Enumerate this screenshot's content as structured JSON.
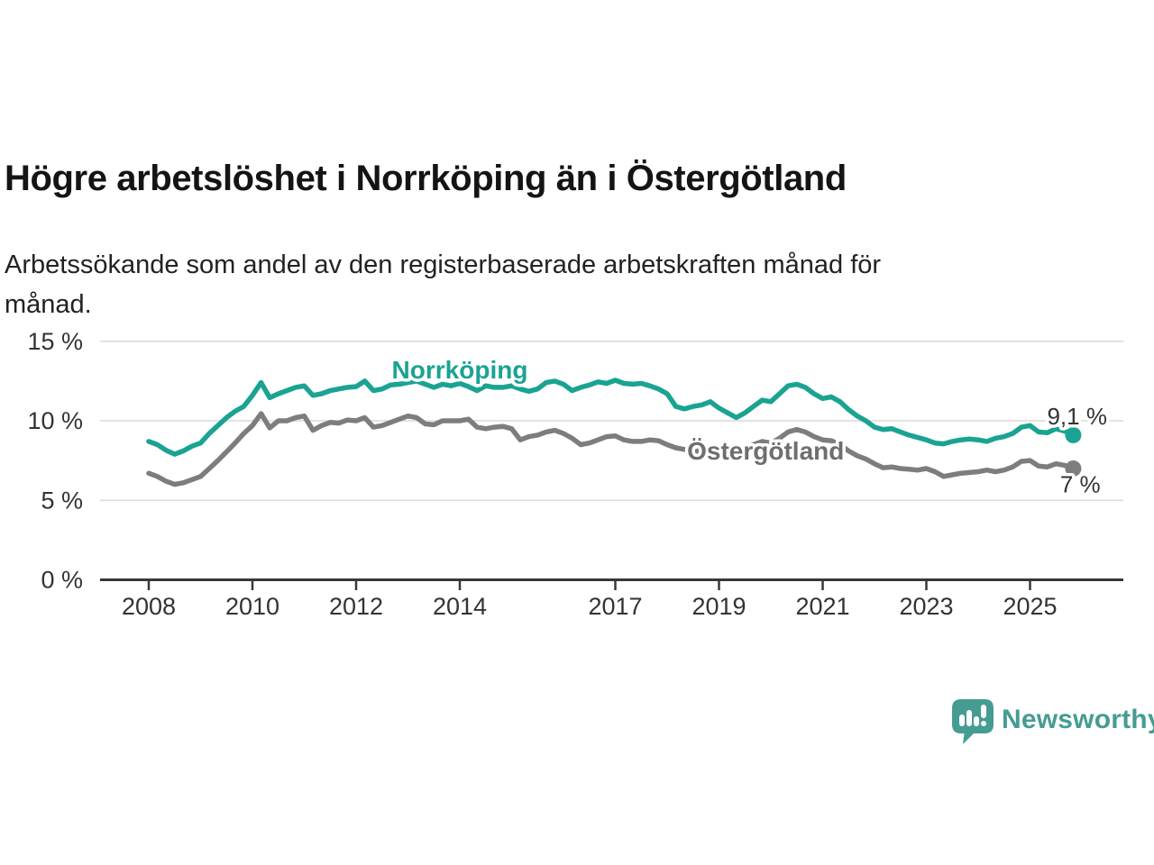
{
  "chart_data": {
    "type": "line",
    "title": "Högre arbetslöshet i Norrköping än i Östergötland",
    "subtitle": "Arbetssökande som andel av den registerbaserade arbetskraften månad för\nmånad.",
    "unit": "%",
    "grid": "horizontal",
    "x_start": 2008,
    "x_end": 2025.83,
    "points_per_year": 6,
    "ylim": [
      0,
      15.8
    ],
    "x_axis_ticks": [
      2008,
      2010,
      2012,
      2014,
      2017,
      2019,
      2021,
      2023,
      2025
    ],
    "y_axis_ticks": [
      {
        "value": 0,
        "label": "0 %"
      },
      {
        "value": 5,
        "label": "5 %"
      },
      {
        "value": 10,
        "label": "10 %"
      },
      {
        "value": 15,
        "label": "15 %"
      }
    ],
    "series": [
      {
        "name": "Norrköping",
        "color": "#1aa392",
        "label_color": "#1aa392",
        "inline_label": {
          "t": 2014.0,
          "v": 12.66
        },
        "end_value_label": {
          "text": "9,1 %",
          "t": 2025.33,
          "v": 9.78
        },
        "latest_value": "9,1 %",
        "values": [
          8.7,
          8.5,
          8.15,
          7.9,
          8.1,
          8.4,
          8.6,
          9.2,
          9.7,
          10.2,
          10.6,
          10.9,
          11.6,
          12.4,
          11.45,
          11.7,
          11.9,
          12.1,
          12.2,
          11.6,
          11.7,
          11.9,
          12.0,
          12.1,
          12.15,
          12.5,
          11.9,
          12.0,
          12.25,
          12.3,
          12.4,
          12.5,
          12.3,
          12.1,
          12.3,
          12.2,
          12.35,
          12.15,
          11.9,
          12.2,
          12.1,
          12.1,
          12.2,
          12.0,
          11.85,
          12.0,
          12.4,
          12.5,
          12.3,
          11.9,
          12.1,
          12.25,
          12.45,
          12.35,
          12.55,
          12.35,
          12.3,
          12.35,
          12.2,
          12.0,
          11.7,
          10.9,
          10.75,
          10.9,
          11.0,
          11.2,
          10.8,
          10.5,
          10.2,
          10.5,
          10.9,
          11.3,
          11.2,
          11.7,
          12.2,
          12.3,
          12.1,
          11.7,
          11.4,
          11.5,
          11.2,
          10.7,
          10.3,
          10.0,
          9.6,
          9.45,
          9.5,
          9.3,
          9.1,
          8.95,
          8.8,
          8.6,
          8.55,
          8.7,
          8.8,
          8.85,
          8.8,
          8.7,
          8.9,
          9.0,
          9.2,
          9.6,
          9.7,
          9.3,
          9.25,
          9.5,
          9.35,
          9.1
        ]
      },
      {
        "name": "Östergötland",
        "color": "#7d7d7d",
        "label_color": "#6e6e6e",
        "inline_label": {
          "t": 2019.9,
          "v": 7.56
        },
        "end_value_label": {
          "text": "7 %",
          "t": 2025.58,
          "v": 5.5
        },
        "latest_value": "7 %",
        "values": [
          6.7,
          6.5,
          6.2,
          6.0,
          6.1,
          6.3,
          6.5,
          7.0,
          7.5,
          8.05,
          8.6,
          9.2,
          9.7,
          10.45,
          9.55,
          10.0,
          10.0,
          10.2,
          10.3,
          9.4,
          9.7,
          9.9,
          9.85,
          10.05,
          10.0,
          10.2,
          9.6,
          9.7,
          9.9,
          10.1,
          10.3,
          10.2,
          9.8,
          9.75,
          10.0,
          10.0,
          10.0,
          10.1,
          9.6,
          9.5,
          9.6,
          9.65,
          9.5,
          8.8,
          9.0,
          9.1,
          9.3,
          9.4,
          9.2,
          8.9,
          8.5,
          8.6,
          8.8,
          9.0,
          9.05,
          8.8,
          8.7,
          8.7,
          8.8,
          8.75,
          8.5,
          8.3,
          8.2,
          8.0,
          8.2,
          8.4,
          8.3,
          8.2,
          8.1,
          8.3,
          8.5,
          8.7,
          8.6,
          8.9,
          9.3,
          9.45,
          9.3,
          9.0,
          8.8,
          8.75,
          8.5,
          8.1,
          7.8,
          7.6,
          7.3,
          7.05,
          7.1,
          7.0,
          6.95,
          6.9,
          7.0,
          6.8,
          6.5,
          6.6,
          6.7,
          6.75,
          6.8,
          6.9,
          6.8,
          6.9,
          7.1,
          7.45,
          7.5,
          7.15,
          7.1,
          7.3,
          7.2,
          7.0
        ]
      }
    ]
  },
  "footer": {
    "brand": "Newsworthy",
    "brand_color": "#459c92",
    "logo_icon": "bar-chart-speech-bubble"
  }
}
